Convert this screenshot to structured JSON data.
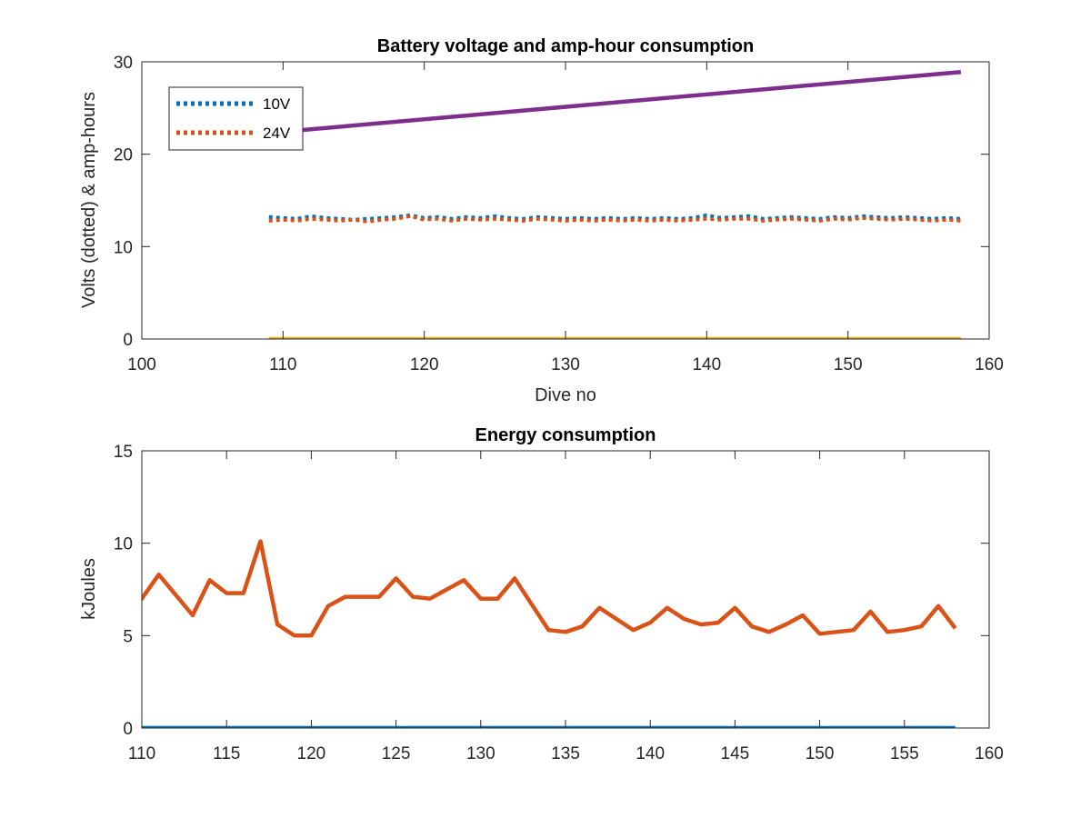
{
  "chart_data": [
    {
      "type": "line",
      "title": "Battery voltage and amp-hour consumption",
      "xlabel": "Dive no",
      "ylabel": "Volts (dotted) & amp-hours",
      "xlim": [
        100,
        160
      ],
      "ylim": [
        0,
        30
      ],
      "xticks": [
        "100",
        "110",
        "120",
        "130",
        "140",
        "150",
        "160"
      ],
      "yticks": [
        "0",
        "10",
        "20",
        "30"
      ],
      "legend": {
        "placement": "top-left",
        "entries": [
          "10V",
          "24V"
        ]
      },
      "grid": false,
      "x": [
        109,
        110,
        111,
        112,
        113,
        114,
        115,
        116,
        117,
        118,
        119,
        120,
        121,
        122,
        123,
        124,
        125,
        126,
        127,
        128,
        129,
        130,
        131,
        132,
        133,
        134,
        135,
        136,
        137,
        138,
        139,
        140,
        141,
        142,
        143,
        144,
        145,
        146,
        147,
        148,
        149,
        150,
        151,
        152,
        153,
        154,
        155,
        156,
        157,
        158
      ],
      "series": [
        {
          "name": "10V",
          "style": "dotted",
          "color": "#0072BD",
          "values": [
            13.2,
            13.1,
            13.0,
            13.3,
            13.1,
            13.0,
            12.9,
            13.0,
            13.1,
            13.2,
            13.4,
            13.1,
            13.2,
            13.0,
            13.2,
            13.1,
            13.3,
            13.1,
            13.0,
            13.2,
            13.1,
            13.0,
            13.1,
            13.0,
            13.1,
            13.0,
            13.1,
            13.0,
            13.1,
            13.0,
            13.1,
            13.4,
            13.1,
            13.2,
            13.3,
            13.0,
            13.1,
            13.2,
            13.1,
            13.0,
            13.2,
            13.1,
            13.3,
            13.2,
            13.1,
            13.2,
            13.1,
            13.0,
            13.1,
            13.0
          ]
        },
        {
          "name": "24V",
          "style": "dotted",
          "color": "#D95319",
          "values": [
            12.8,
            12.9,
            12.8,
            13.0,
            12.9,
            12.8,
            12.9,
            12.7,
            12.9,
            13.0,
            13.3,
            12.9,
            13.0,
            12.8,
            13.0,
            12.9,
            13.0,
            12.9,
            12.8,
            13.0,
            12.9,
            12.8,
            12.9,
            12.8,
            12.9,
            12.8,
            12.9,
            12.8,
            12.9,
            12.8,
            12.9,
            13.0,
            12.9,
            13.0,
            13.0,
            12.8,
            12.9,
            13.0,
            12.9,
            12.8,
            13.0,
            12.9,
            13.1,
            13.0,
            12.9,
            13.0,
            12.9,
            12.8,
            12.9,
            12.8
          ]
        },
        {
          "style": "solid",
          "color": "#7E2F8E",
          "x_range": [
            109,
            158
          ],
          "values_range": [
            22.3,
            28.9
          ]
        },
        {
          "style": "solid",
          "color": "#EDB120",
          "x_range": [
            109,
            158
          ],
          "values_range": [
            0,
            0
          ]
        }
      ]
    },
    {
      "type": "line",
      "title": "Energy consumption",
      "xlabel": "",
      "ylabel": "kJoules",
      "xlim": [
        110,
        160
      ],
      "ylim": [
        0,
        15
      ],
      "xticks": [
        "110",
        "115",
        "120",
        "125",
        "130",
        "135",
        "140",
        "145",
        "150",
        "155",
        "160"
      ],
      "yticks": [
        "0",
        "5",
        "10",
        "15"
      ],
      "grid": false,
      "x": [
        109,
        110,
        111,
        112,
        113,
        114,
        115,
        116,
        117,
        118,
        119,
        120,
        121,
        122,
        123,
        124,
        125,
        126,
        127,
        128,
        129,
        130,
        131,
        132,
        133,
        134,
        135,
        136,
        137,
        138,
        139,
        140,
        141,
        142,
        143,
        144,
        145,
        146,
        147,
        148,
        149,
        150,
        151,
        152,
        153,
        154,
        155,
        156,
        157,
        158
      ],
      "series": [
        {
          "style": "solid",
          "color": "#D95319",
          "values": [
            6.4,
            7.0,
            8.3,
            7.2,
            6.1,
            8.0,
            7.3,
            7.3,
            10.1,
            5.6,
            5.0,
            5.0,
            6.6,
            7.1,
            7.1,
            7.1,
            8.1,
            7.1,
            7.0,
            7.5,
            8.0,
            7.0,
            7.0,
            8.1,
            6.7,
            5.3,
            5.2,
            5.5,
            6.5,
            5.9,
            5.3,
            5.7,
            6.5,
            5.9,
            5.6,
            5.7,
            6.5,
            5.5,
            5.2,
            5.6,
            6.1,
            5.1,
            5.2,
            5.3,
            6.3,
            5.2,
            5.3,
            5.5,
            6.6,
            5.4
          ]
        },
        {
          "style": "solid",
          "color": "#0072BD",
          "x_range": [
            110,
            158
          ],
          "values_range": [
            0,
            0
          ]
        }
      ]
    }
  ]
}
